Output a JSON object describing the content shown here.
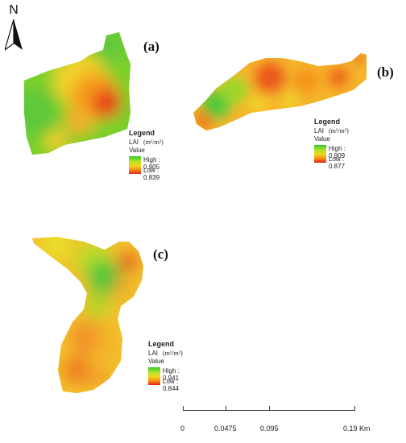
{
  "north": {
    "letter": "N",
    "icon": "north-arrow-icon"
  },
  "maps": [
    {
      "id": "a",
      "label": "(a)",
      "legend": {
        "title": "Legend",
        "variable": "LAI",
        "unit": "(m²/m²)",
        "value_label": "Value",
        "high": "High : 0.905",
        "low": "Low : 0.839"
      }
    },
    {
      "id": "b",
      "label": "(b)",
      "legend": {
        "title": "Legend",
        "variable": "LAI",
        "unit": "(m²/m²)",
        "value_label": "Value",
        "high": "High : 0.909",
        "low": "Low : 0.877"
      }
    },
    {
      "id": "c",
      "label": "(c)",
      "legend": {
        "title": "Legend",
        "variable": "LAI",
        "unit": "(m²/m²)",
        "value_label": "Value",
        "high": "High : 0.941",
        "low": "Low : 0.844"
      }
    }
  ],
  "scalebar": {
    "labels": [
      "0",
      "0.0475",
      "0.095",
      "0.19 Km"
    ]
  },
  "colors": {
    "high": "#2ecb2a",
    "mid": "#f5d21c",
    "low": "#e8201a"
  }
}
